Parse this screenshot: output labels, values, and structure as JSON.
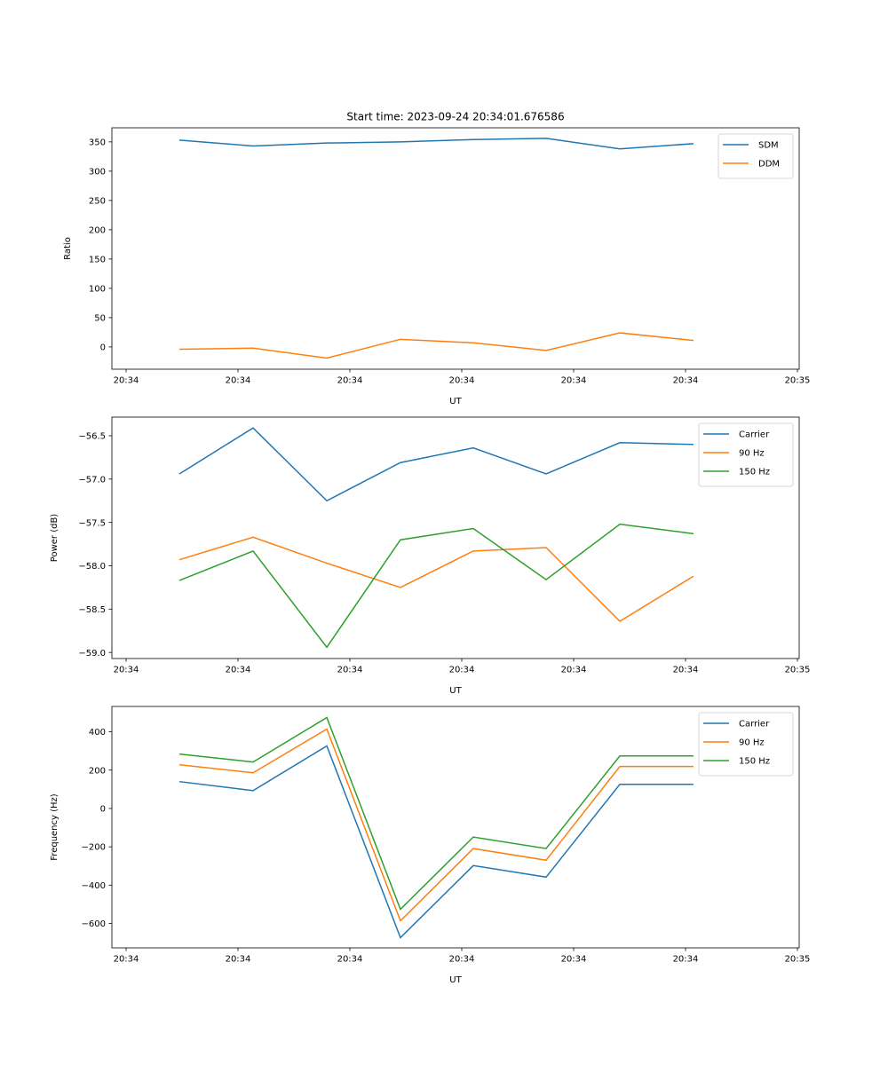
{
  "figure": {
    "title": "Start time: 2023-09-24 20:34:01.676586"
  },
  "chart_data": [
    {
      "type": "line",
      "title": "Start time: 2023-09-24 20:34:01.676586",
      "xlabel": "UT",
      "ylabel": "Ratio",
      "x_unit": "seconds after 20:34:00",
      "x": [
        4.76,
        11.35,
        17.94,
        24.52,
        31.03,
        37.54,
        44.13,
        50.71
      ],
      "xlim": [
        -1.27,
        60.16
      ],
      "xticks": [
        0,
        10,
        20,
        30,
        40,
        50,
        60
      ],
      "xtick_labels": [
        "20:34",
        "20:34",
        "20:34",
        "20:34",
        "20:34",
        "20:34",
        "20:35"
      ],
      "ylim": [
        -38,
        374
      ],
      "yticks": [
        0,
        50,
        100,
        150,
        200,
        250,
        300,
        350
      ],
      "ytick_labels": [
        "0",
        "50",
        "100",
        "150",
        "200",
        "250",
        "300",
        "350"
      ],
      "grid": false,
      "legend_position": "top-right",
      "series": [
        {
          "name": "SDM",
          "color": "#1f77b4",
          "values": [
            353,
            343,
            348,
            350,
            354,
            356,
            338,
            347
          ]
        },
        {
          "name": "DDM",
          "color": "#ff7f0e",
          "values": [
            -4,
            -2,
            -19,
            13,
            7,
            -6,
            24,
            11
          ]
        }
      ]
    },
    {
      "type": "line",
      "title": "",
      "xlabel": "UT",
      "ylabel": "Power (dB)",
      "x_unit": "seconds after 20:34:00",
      "x": [
        4.76,
        11.35,
        17.94,
        24.52,
        31.03,
        37.54,
        44.13,
        50.71
      ],
      "xlim": [
        -1.27,
        60.16
      ],
      "xticks": [
        0,
        10,
        20,
        30,
        40,
        50,
        60
      ],
      "xtick_labels": [
        "20:34",
        "20:34",
        "20:34",
        "20:34",
        "20:34",
        "20:34",
        "20:35"
      ],
      "ylim": [
        -59.07,
        -56.285
      ],
      "yticks": [
        -59.0,
        -58.5,
        -58.0,
        -57.5,
        -57.0,
        -56.5
      ],
      "ytick_labels": [
        "−59.0",
        "−58.5",
        "−58.0",
        "−57.5",
        "−57.0",
        "−56.5"
      ],
      "grid": false,
      "legend_position": "top-right",
      "series": [
        {
          "name": "Carrier",
          "color": "#1f77b4",
          "values": [
            -56.94,
            -56.41,
            -57.25,
            -56.81,
            -56.64,
            -56.94,
            -56.58,
            -56.6
          ]
        },
        {
          "name": "90 Hz",
          "color": "#ff7f0e",
          "values": [
            -57.93,
            -57.67,
            -57.97,
            -58.25,
            -57.83,
            -57.79,
            -58.64,
            -58.12
          ]
        },
        {
          "name": "150 Hz",
          "color": "#2ca02c",
          "values": [
            -58.17,
            -57.83,
            -58.94,
            -57.7,
            -57.57,
            -58.16,
            -57.52,
            -57.63
          ]
        }
      ]
    },
    {
      "type": "line",
      "title": "",
      "xlabel": "UT",
      "ylabel": "Frequency (Hz)",
      "x_unit": "seconds after 20:34:00",
      "x": [
        4.76,
        11.35,
        17.94,
        24.52,
        31.03,
        37.54,
        44.13,
        50.71
      ],
      "xlim": [
        -1.27,
        60.16
      ],
      "xticks": [
        0,
        10,
        20,
        30,
        40,
        50,
        60
      ],
      "xtick_labels": [
        "20:34",
        "20:34",
        "20:34",
        "20:34",
        "20:34",
        "20:34",
        "20:35"
      ],
      "ylim": [
        -727,
        532
      ],
      "yticks": [
        -600,
        -400,
        -200,
        0,
        200,
        400
      ],
      "ytick_labels": [
        "−600",
        "−400",
        "−200",
        "0",
        "200",
        "400"
      ],
      "grid": false,
      "legend_position": "top-right",
      "series": [
        {
          "name": "Carrier",
          "color": "#1f77b4",
          "values": [
            140,
            93,
            326,
            -674,
            -298,
            -358,
            126,
            126
          ]
        },
        {
          "name": "90 Hz",
          "color": "#ff7f0e",
          "values": [
            228,
            186,
            414,
            -586,
            -209,
            -270,
            219,
            219
          ]
        },
        {
          "name": "150 Hz",
          "color": "#2ca02c",
          "values": [
            284,
            242,
            474,
            -526,
            -149,
            -209,
            274,
            274
          ]
        }
      ]
    }
  ]
}
